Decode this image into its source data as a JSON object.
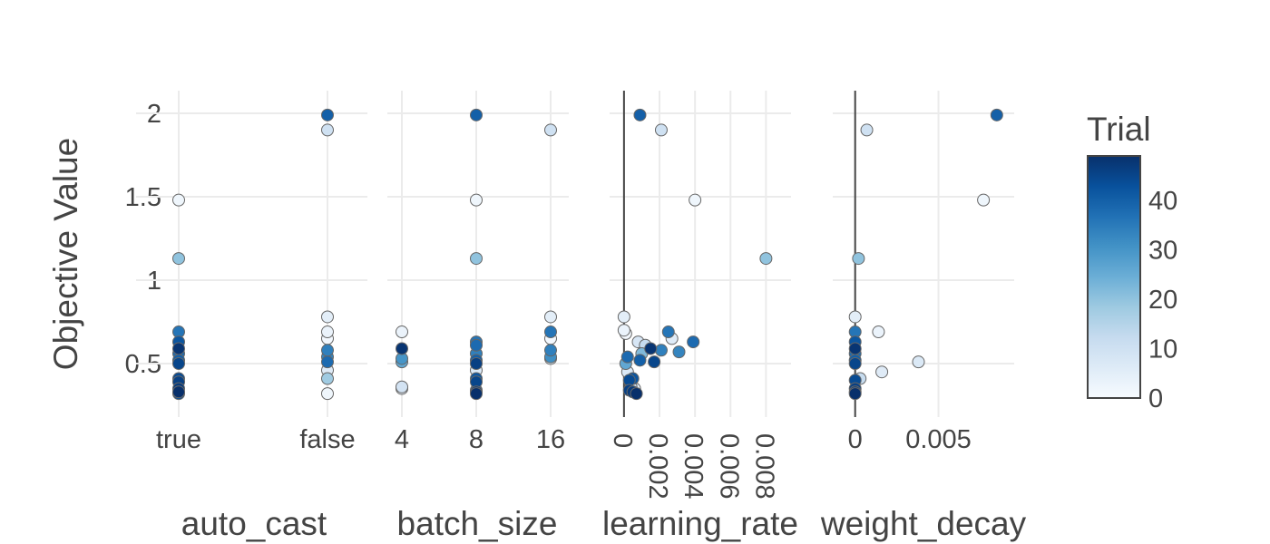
{
  "chart_data": {
    "type": "scatter",
    "ylabel": "Objective Value",
    "y_ticks": [
      "0.5",
      "1",
      "1.5",
      "2"
    ],
    "ylim": [
      0.2,
      2.15
    ],
    "colorbar": {
      "title": "Trial",
      "ticks": [
        "0",
        "10",
        "20",
        "30",
        "40"
      ],
      "range": [
        0,
        49
      ],
      "colors": [
        "#f7fbff",
        "#deebf7",
        "#c6dbef",
        "#9ecae1",
        "#6baed6",
        "#4292c6",
        "#2171b5",
        "#08519c",
        "#08306b"
      ]
    },
    "grid": true,
    "panels": [
      {
        "xlabel": "auto_cast",
        "type": "categorical",
        "categories": [
          "true",
          "false"
        ],
        "ticks": [
          "true",
          "false"
        ],
        "points": [
          {
            "x": "true",
            "y": 1.48,
            "trial": 2
          },
          {
            "x": "true",
            "y": 1.13,
            "trial": 20
          },
          {
            "x": "true",
            "y": 0.69,
            "trial": 36
          },
          {
            "x": "true",
            "y": 0.63,
            "trial": 42
          },
          {
            "x": "true",
            "y": 0.59,
            "trial": 48
          },
          {
            "x": "true",
            "y": 0.56,
            "trial": 38
          },
          {
            "x": "true",
            "y": 0.52,
            "trial": 40
          },
          {
            "x": "true",
            "y": 0.5,
            "trial": 45
          },
          {
            "x": "true",
            "y": 0.41,
            "trial": 44
          },
          {
            "x": "true",
            "y": 0.39,
            "trial": 46
          },
          {
            "x": "true",
            "y": 0.35,
            "trial": 47
          },
          {
            "x": "true",
            "y": 0.33,
            "trial": 49
          },
          {
            "x": "true",
            "y": 0.32,
            "trial": 43
          },
          {
            "x": "false",
            "y": 1.99,
            "trial": 40
          },
          {
            "x": "false",
            "y": 1.9,
            "trial": 10
          },
          {
            "x": "false",
            "y": 0.78,
            "trial": 5
          },
          {
            "x": "false",
            "y": 0.69,
            "trial": 3
          },
          {
            "x": "false",
            "y": 0.65,
            "trial": 1
          },
          {
            "x": "false",
            "y": 0.58,
            "trial": 34
          },
          {
            "x": "false",
            "y": 0.54,
            "trial": 33
          },
          {
            "x": "false",
            "y": 0.51,
            "trial": 38
          },
          {
            "x": "false",
            "y": 0.46,
            "trial": 6
          },
          {
            "x": "false",
            "y": 0.41,
            "trial": 18
          },
          {
            "x": "false",
            "y": 0.32,
            "trial": 2
          }
        ]
      },
      {
        "xlabel": "batch_size",
        "type": "categorical",
        "categories": [
          "4",
          "8",
          "16"
        ],
        "ticks": [
          "4",
          "8",
          "16"
        ],
        "points": [
          {
            "x": "4",
            "y": 0.69,
            "trial": 3
          },
          {
            "x": "4",
            "y": 0.59,
            "trial": 48
          },
          {
            "x": "4",
            "y": 0.53,
            "trial": 30
          },
          {
            "x": "4",
            "y": 0.51,
            "trial": 26
          },
          {
            "x": "4",
            "y": 0.36,
            "trial": 9
          },
          {
            "x": "4",
            "y": 0.35,
            "trial": 4
          },
          {
            "x": "8",
            "y": 1.99,
            "trial": 40
          },
          {
            "x": "8",
            "y": 1.48,
            "trial": 2
          },
          {
            "x": "8",
            "y": 1.13,
            "trial": 20
          },
          {
            "x": "8",
            "y": 0.63,
            "trial": 36
          },
          {
            "x": "8",
            "y": 0.61,
            "trial": 38
          },
          {
            "x": "8",
            "y": 0.56,
            "trial": 34
          },
          {
            "x": "8",
            "y": 0.52,
            "trial": 40
          },
          {
            "x": "8",
            "y": 0.5,
            "trial": 46
          },
          {
            "x": "8",
            "y": 0.46,
            "trial": 7
          },
          {
            "x": "8",
            "y": 0.41,
            "trial": 42
          },
          {
            "x": "8",
            "y": 0.39,
            "trial": 45
          },
          {
            "x": "8",
            "y": 0.34,
            "trial": 44
          },
          {
            "x": "8",
            "y": 0.33,
            "trial": 47
          },
          {
            "x": "8",
            "y": 0.32,
            "trial": 49
          },
          {
            "x": "16",
            "y": 1.9,
            "trial": 10
          },
          {
            "x": "16",
            "y": 0.78,
            "trial": 5
          },
          {
            "x": "16",
            "y": 0.69,
            "trial": 36
          },
          {
            "x": "16",
            "y": 0.65,
            "trial": 1
          },
          {
            "x": "16",
            "y": 0.58,
            "trial": 34
          },
          {
            "x": "16",
            "y": 0.54,
            "trial": 31
          },
          {
            "x": "16",
            "y": 0.53,
            "trial": 6
          }
        ]
      },
      {
        "xlabel": "learning_rate",
        "type": "numeric",
        "xlim": [
          -0.0003,
          0.0089
        ],
        "tick_values": [
          0,
          0.002,
          0.004,
          0.006,
          0.008
        ],
        "ticks": [
          "0",
          "0.002",
          "0.004",
          "0.006",
          "0.008"
        ],
        "zero_line": true,
        "points": [
          {
            "x": 0.0009,
            "y": 1.99,
            "trial": 40
          },
          {
            "x": 0.0021,
            "y": 1.9,
            "trial": 10
          },
          {
            "x": 0.004,
            "y": 1.48,
            "trial": 2
          },
          {
            "x": 0.008,
            "y": 1.13,
            "trial": 20
          },
          {
            "x": 0.0,
            "y": 0.78,
            "trial": 5
          },
          {
            "x": 0.0,
            "y": 0.7,
            "trial": 3
          },
          {
            "x": 0.0001,
            "y": 0.68,
            "trial": 1
          },
          {
            "x": 0.0025,
            "y": 0.69,
            "trial": 36
          },
          {
            "x": 0.0027,
            "y": 0.65,
            "trial": 6
          },
          {
            "x": 0.0039,
            "y": 0.63,
            "trial": 38
          },
          {
            "x": 0.0008,
            "y": 0.63,
            "trial": 8
          },
          {
            "x": 0.0012,
            "y": 0.61,
            "trial": 12
          },
          {
            "x": 0.0015,
            "y": 0.59,
            "trial": 48
          },
          {
            "x": 0.0021,
            "y": 0.58,
            "trial": 34
          },
          {
            "x": 0.0031,
            "y": 0.57,
            "trial": 33
          },
          {
            "x": 0.001,
            "y": 0.56,
            "trial": 22
          },
          {
            "x": 0.0002,
            "y": 0.54,
            "trial": 38
          },
          {
            "x": 0.0009,
            "y": 0.52,
            "trial": 40
          },
          {
            "x": 0.0017,
            "y": 0.51,
            "trial": 45
          },
          {
            "x": 0.0001,
            "y": 0.5,
            "trial": 26
          },
          {
            "x": 0.0002,
            "y": 0.45,
            "trial": 7
          },
          {
            "x": 0.0005,
            "y": 0.41,
            "trial": 42
          },
          {
            "x": 0.0003,
            "y": 0.4,
            "trial": 44
          },
          {
            "x": 0.0004,
            "y": 0.36,
            "trial": 9
          },
          {
            "x": 0.0006,
            "y": 0.35,
            "trial": 4
          },
          {
            "x": 0.0003,
            "y": 0.34,
            "trial": 46
          },
          {
            "x": 0.0005,
            "y": 0.33,
            "trial": 47
          },
          {
            "x": 0.0007,
            "y": 0.32,
            "trial": 49
          }
        ]
      },
      {
        "xlabel": "weight_decay",
        "type": "numeric",
        "xlim": [
          -0.0008,
          0.009
        ],
        "tick_values": [
          0,
          0.005
        ],
        "ticks": [
          "0",
          "0.005"
        ],
        "zero_line": true,
        "points": [
          {
            "x": 0.0085,
            "y": 1.99,
            "trial": 40
          },
          {
            "x": 0.0007,
            "y": 1.9,
            "trial": 10
          },
          {
            "x": 0.0077,
            "y": 1.48,
            "trial": 2
          },
          {
            "x": 0.0002,
            "y": 1.13,
            "trial": 20
          },
          {
            "x": 0.0,
            "y": 0.78,
            "trial": 5
          },
          {
            "x": 0.0,
            "y": 0.69,
            "trial": 36
          },
          {
            "x": 0.0014,
            "y": 0.69,
            "trial": 3
          },
          {
            "x": 0.0,
            "y": 0.63,
            "trial": 42
          },
          {
            "x": 0.0,
            "y": 0.59,
            "trial": 48
          },
          {
            "x": 0.0,
            "y": 0.56,
            "trial": 38
          },
          {
            "x": 0.0,
            "y": 0.52,
            "trial": 40
          },
          {
            "x": 0.0038,
            "y": 0.51,
            "trial": 7
          },
          {
            "x": 0.0,
            "y": 0.5,
            "trial": 45
          },
          {
            "x": 0.0016,
            "y": 0.45,
            "trial": 6
          },
          {
            "x": 0.0003,
            "y": 0.41,
            "trial": 12
          },
          {
            "x": 0.0,
            "y": 0.4,
            "trial": 44
          },
          {
            "x": 0.0,
            "y": 0.35,
            "trial": 46
          },
          {
            "x": 0.0,
            "y": 0.33,
            "trial": 47
          },
          {
            "x": 0.0,
            "y": 0.32,
            "trial": 49
          }
        ]
      }
    ]
  }
}
